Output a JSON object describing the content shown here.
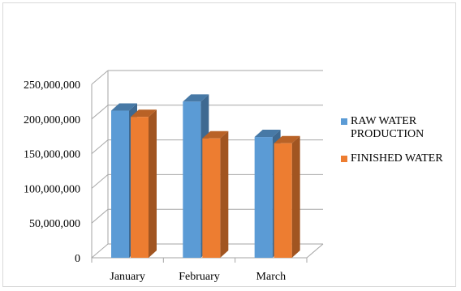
{
  "chart_data": {
    "type": "bar",
    "categories": [
      "January",
      "February",
      "March"
    ],
    "series": [
      {
        "name": "RAW WATER PRODUCTION",
        "values": [
          212000000,
          225000000,
          174000000
        ],
        "color": "#5b9bd5"
      },
      {
        "name": "FINISHED WATER",
        "values": [
          203000000,
          172000000,
          165000000
        ],
        "color": "#ed7d31"
      }
    ],
    "ylim": [
      0,
      250000000
    ],
    "yticks": [
      0,
      50000000,
      100000000,
      150000000,
      200000000,
      250000000
    ],
    "ytick_labels": [
      "0",
      "50,000,000",
      "100,000,000",
      "150,000,000",
      "200,000,000",
      "250,000,000"
    ],
    "grid": true,
    "legend_position": "right",
    "style": "3d-clustered-column"
  }
}
